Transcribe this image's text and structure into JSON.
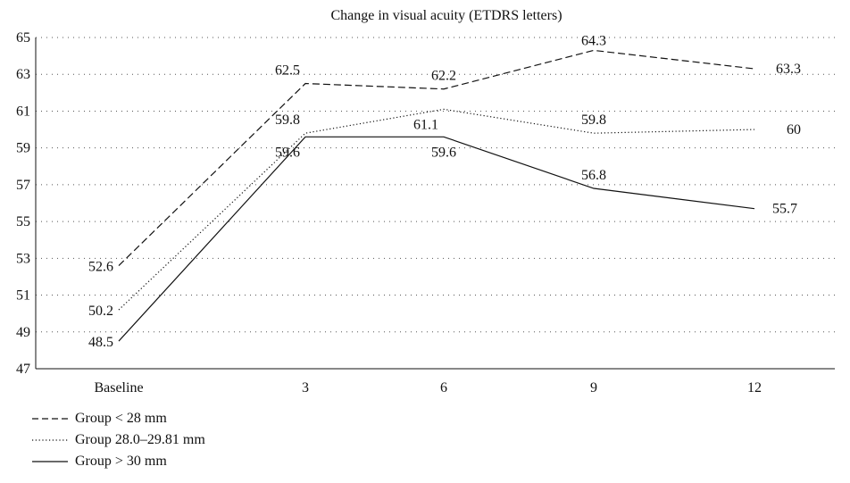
{
  "chart_data": {
    "type": "line",
    "title": "Change in visual acuity (ETDRS letters)",
    "xlabel": "",
    "ylabel": "",
    "categories": [
      "Baseline",
      "3",
      "6",
      "9",
      "12"
    ],
    "ylim": [
      47,
      65
    ],
    "yticks": [
      47,
      49,
      51,
      53,
      55,
      57,
      59,
      61,
      63,
      65
    ],
    "grid": "horizontal dotted",
    "legend_position": "bottom-left",
    "series": [
      {
        "name": "Group < 28 mm",
        "style": "dashed",
        "values": [
          52.6,
          62.5,
          62.2,
          64.3,
          63.3
        ],
        "labels": [
          "52.6",
          "62.5",
          "62.2",
          "64.3",
          "63.3"
        ]
      },
      {
        "name": "Group 28.0–29.81 mm",
        "style": "dotted",
        "values": [
          50.2,
          59.8,
          61.1,
          59.8,
          60
        ],
        "labels": [
          "50.2",
          "59.8",
          "61.1",
          "59.8",
          "60"
        ]
      },
      {
        "name": "Group > 30 mm",
        "style": "solid",
        "values": [
          48.5,
          59.6,
          59.6,
          56.8,
          55.7
        ],
        "labels": [
          "48.5",
          "59.6",
          "59.6",
          "56.8",
          "55.7"
        ]
      }
    ],
    "colors": {
      "line": "#111111",
      "grid": "#555555"
    }
  }
}
